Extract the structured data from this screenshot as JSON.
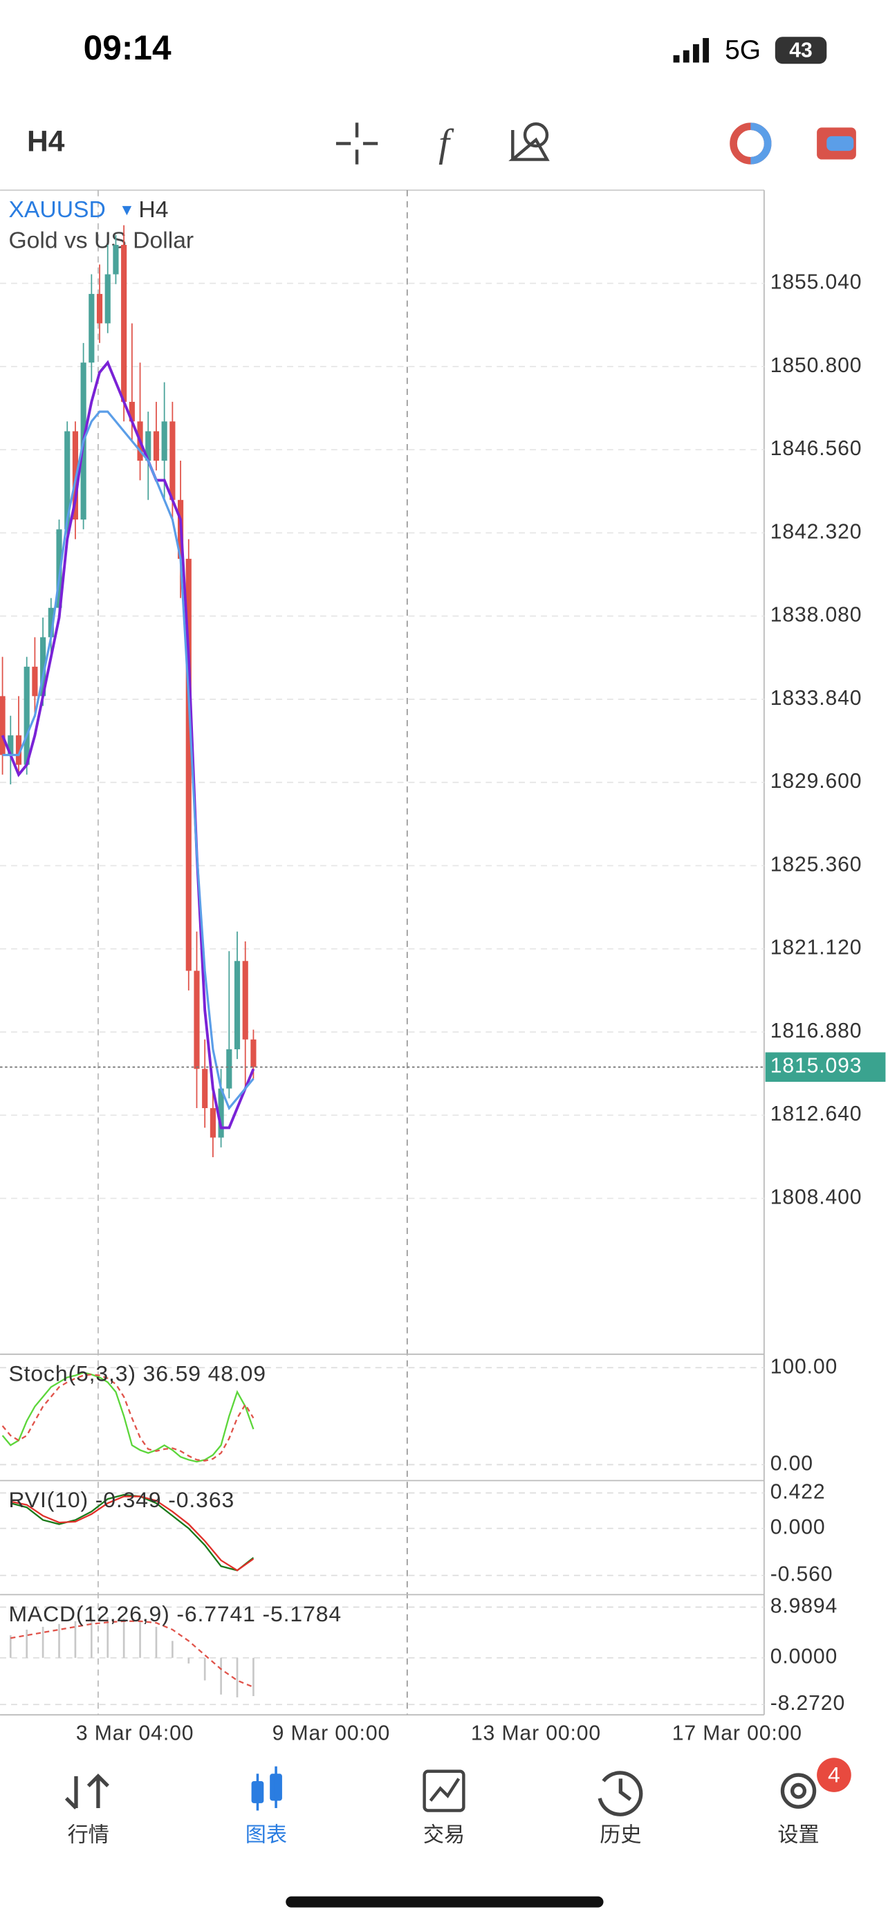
{
  "status": {
    "time": "09:14",
    "network": "5G",
    "battery": "43"
  },
  "toolbar": {
    "timeframe": "H4"
  },
  "chart_data": {
    "type": "candlestick",
    "symbol": "XAUUSD",
    "timeframe": "H4",
    "description": "Gold vs US Dollar",
    "ylim": [
      1800.52,
      1859.79
    ],
    "yticks": [
      {
        "value": 1855.04,
        "label": "1855.040"
      },
      {
        "value": 1850.8,
        "label": "1850.800"
      },
      {
        "value": 1846.56,
        "label": "1846.560"
      },
      {
        "value": 1842.32,
        "label": "1842.320"
      },
      {
        "value": 1838.08,
        "label": "1838.080"
      },
      {
        "value": 1833.84,
        "label": "1833.840"
      },
      {
        "value": 1829.6,
        "label": "1829.600"
      },
      {
        "value": 1825.36,
        "label": "1825.360"
      },
      {
        "value": 1821.12,
        "label": "1821.120"
      },
      {
        "value": 1816.88,
        "label": "1816.880"
      },
      {
        "value": 1812.64,
        "label": "1812.640"
      },
      {
        "value": 1808.4,
        "label": "1808.400"
      }
    ],
    "current_price": {
      "value": 1815.093,
      "label": "1815.093"
    },
    "up_color": "#4aa39a",
    "down_color": "#e0534a",
    "candles": [
      {
        "open": 1834,
        "high": 1836,
        "low": 1830,
        "close": 1831
      },
      {
        "open": 1831,
        "high": 1833,
        "low": 1829.5,
        "close": 1832
      },
      {
        "open": 1832,
        "high": 1834,
        "low": 1830,
        "close": 1830.5
      },
      {
        "open": 1830.5,
        "high": 1836,
        "low": 1830,
        "close": 1835.5
      },
      {
        "open": 1835.5,
        "high": 1837,
        "low": 1833,
        "close": 1834
      },
      {
        "open": 1834,
        "high": 1838,
        "low": 1833.5,
        "close": 1837
      },
      {
        "open": 1837,
        "high": 1839,
        "low": 1836,
        "close": 1838.5
      },
      {
        "open": 1838.5,
        "high": 1843,
        "low": 1838,
        "close": 1842.5
      },
      {
        "open": 1842.5,
        "high": 1848,
        "low": 1842,
        "close": 1847.5
      },
      {
        "open": 1847.5,
        "high": 1848,
        "low": 1842,
        "close": 1843
      },
      {
        "open": 1843,
        "high": 1852,
        "low": 1842.5,
        "close": 1851
      },
      {
        "open": 1851,
        "high": 1855.5,
        "low": 1850,
        "close": 1854.5
      },
      {
        "open": 1854.5,
        "high": 1856,
        "low": 1852,
        "close": 1853
      },
      {
        "open": 1853,
        "high": 1857,
        "low": 1852.5,
        "close": 1855.5
      },
      {
        "open": 1855.5,
        "high": 1857.5,
        "low": 1855,
        "close": 1857
      },
      {
        "open": 1857,
        "high": 1858,
        "low": 1848,
        "close": 1849
      },
      {
        "open": 1849,
        "high": 1853,
        "low": 1847,
        "close": 1848
      },
      {
        "open": 1848,
        "high": 1851,
        "low": 1845,
        "close": 1846
      },
      {
        "open": 1846,
        "high": 1848.5,
        "low": 1844,
        "close": 1847.5
      },
      {
        "open": 1847.5,
        "high": 1849,
        "low": 1845.5,
        "close": 1846
      },
      {
        "open": 1846,
        "high": 1850,
        "low": 1844,
        "close": 1848
      },
      {
        "open": 1848,
        "high": 1849,
        "low": 1843,
        "close": 1844
      },
      {
        "open": 1844,
        "high": 1846,
        "low": 1839,
        "close": 1841
      },
      {
        "open": 1841,
        "high": 1842,
        "low": 1819,
        "close": 1820
      },
      {
        "open": 1820,
        "high": 1822,
        "low": 1813,
        "close": 1815
      },
      {
        "open": 1815,
        "high": 1816.5,
        "low": 1812,
        "close": 1813
      },
      {
        "open": 1813,
        "high": 1814,
        "low": 1810.5,
        "close": 1811.5
      },
      {
        "open": 1811.5,
        "high": 1815,
        "low": 1811,
        "close": 1814
      },
      {
        "open": 1814,
        "high": 1821,
        "low": 1813.5,
        "close": 1816
      },
      {
        "open": 1816,
        "high": 1822,
        "low": 1815.5,
        "close": 1820.5
      },
      {
        "open": 1820.5,
        "high": 1821.5,
        "low": 1814,
        "close": 1816.5
      },
      {
        "open": 1816.5,
        "high": 1817,
        "low": 1814.5,
        "close": 1815.093
      }
    ],
    "series": [
      {
        "color": "#7a22d6",
        "values": [
          1832,
          1831,
          1830,
          1830.5,
          1832,
          1834,
          1836,
          1838,
          1842,
          1844,
          1847,
          1849,
          1850.5,
          1851,
          1850,
          1849,
          1848,
          1847,
          1846,
          1845,
          1845,
          1844,
          1843,
          1836,
          1826,
          1818,
          1814,
          1812,
          1812,
          1813,
          1814,
          1815
        ]
      },
      {
        "color": "#5b9ee8",
        "values": [
          1831,
          1831,
          1831,
          1832,
          1833,
          1835,
          1837,
          1840,
          1843,
          1845,
          1847,
          1848,
          1848.5,
          1848.5,
          1848,
          1847.5,
          1847,
          1846.5,
          1846,
          1845,
          1844,
          1843,
          1841,
          1834,
          1826,
          1820,
          1816,
          1814,
          1813,
          1813.5,
          1814,
          1814.5
        ]
      }
    ],
    "x_labels": [
      "3 Mar 04:00",
      "9 Mar 00:00",
      "13 Mar 00:00",
      "17 Mar 00:00"
    ]
  },
  "indicators": [
    {
      "label": "Stoch(5,3,3) 36.59 48.09",
      "ylim": [
        -13.9,
        113.9
      ],
      "yticks": [
        {
          "value": 100,
          "label": "100.00"
        },
        {
          "value": 0,
          "label": "0.00"
        }
      ],
      "step": 1,
      "series": [
        {
          "color": "#5cd63a",
          "style": "solid",
          "values": [
            30,
            20,
            25,
            45,
            60,
            70,
            80,
            85,
            90,
            92,
            95,
            93,
            90,
            85,
            75,
            50,
            20,
            15,
            12,
            15,
            20,
            15,
            8,
            5,
            3,
            5,
            10,
            20,
            50,
            75,
            60,
            36.59
          ]
        },
        {
          "color": "#e0534a",
          "style": "dashed",
          "values": [
            40,
            30,
            25,
            30,
            45,
            60,
            70,
            80,
            85,
            89,
            92,
            93,
            92,
            89,
            83,
            70,
            48,
            28,
            16,
            14,
            16,
            17,
            14,
            9,
            5,
            4,
            6,
            12,
            27,
            48,
            62,
            48.09
          ]
        }
      ]
    },
    {
      "label": "RVI(10) -0.349 -0.363",
      "ylim": [
        -0.759,
        0.569
      ],
      "yticks": [
        {
          "value": 0.422,
          "label": "0.422"
        },
        {
          "value": 0,
          "label": "0.000"
        },
        {
          "value": -0.56,
          "label": "-0.560"
        }
      ],
      "step": 2,
      "series": [
        {
          "color": "#1a7a1a",
          "style": "solid",
          "values": [
            0.3,
            0.25,
            0.1,
            0.05,
            0.1,
            0.2,
            0.35,
            0.4,
            0.38,
            0.3,
            0.15,
            0,
            -0.2,
            -0.45,
            -0.5,
            -0.349
          ]
        },
        {
          "color": "#e0302a",
          "style": "solid",
          "values": [
            0.32,
            0.28,
            0.15,
            0.07,
            0.08,
            0.17,
            0.3,
            0.38,
            0.38,
            0.33,
            0.2,
            0.05,
            -0.15,
            -0.38,
            -0.5,
            -0.363
          ]
        }
      ]
    },
    {
      "label": "MACD(12,26,9) -6.7741 -5.1784",
      "ylim": [
        -10.1,
        11.2
      ],
      "yticks": [
        {
          "value": 8.9894,
          "label": "8.9894"
        },
        {
          "value": 0,
          "label": "0.0000"
        },
        {
          "value": -8.272,
          "label": "-8.2720"
        }
      ],
      "step": 2,
      "series": [
        {
          "color": "#c8c8c8",
          "style": "bar",
          "values": [
            4,
            5,
            5.5,
            6,
            6.5,
            7,
            7.2,
            7,
            6.5,
            5.5,
            3,
            -1,
            -4,
            -6.5,
            -7,
            -6.7741
          ]
        },
        {
          "color": "#e0534a",
          "style": "dashed",
          "values": [
            3.5,
            4,
            4.5,
            5,
            5.5,
            6,
            6.3,
            6.5,
            6.5,
            6.2,
            5,
            3,
            0.5,
            -2,
            -4,
            -5.1784
          ]
        }
      ]
    }
  ],
  "tabs": [
    {
      "label": "行情"
    },
    {
      "label": "图表"
    },
    {
      "label": "交易"
    },
    {
      "label": "历史"
    },
    {
      "label": "设置",
      "badge": "4"
    }
  ]
}
